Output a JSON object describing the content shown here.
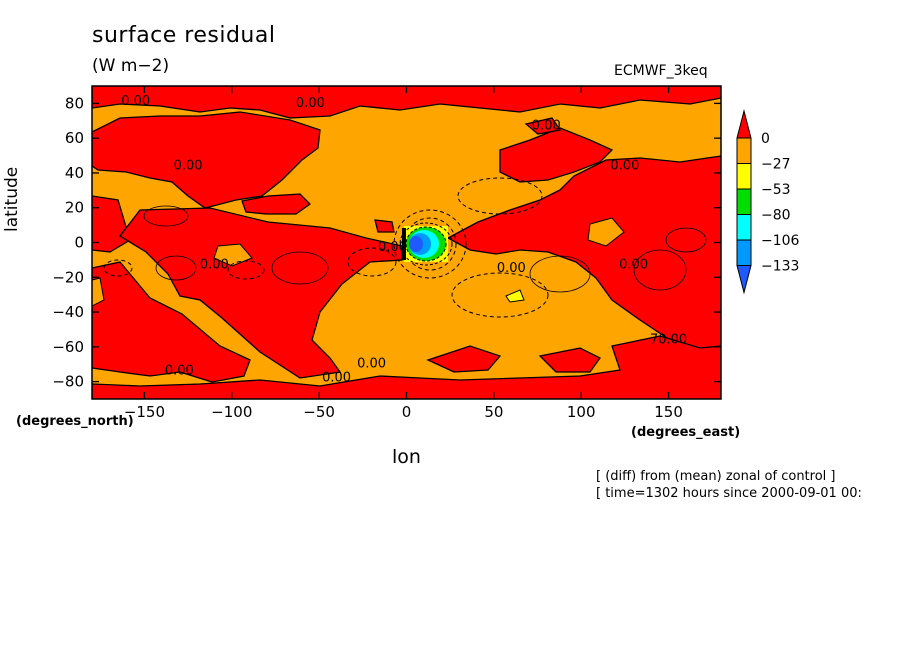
{
  "header": {
    "title": "surface residual",
    "units": "(W m−2)",
    "dataset": "ECMWF_3keq"
  },
  "axes": {
    "x_label": "lon",
    "x_units": "(degrees_east)",
    "y_label": "latitude",
    "y_units": "(degrees_north)"
  },
  "footer": {
    "line1": "[ (diff) from (mean) zonal of control ]",
    "line2": "[ time=1302 hours since 2000-09-01 00:"
  },
  "chart_data": {
    "type": "heatmap",
    "title": "surface residual",
    "units": "W m-2",
    "xlabel": "lon",
    "ylabel": "latitude",
    "xlim": [
      -180,
      180
    ],
    "ylim": [
      -90,
      90
    ],
    "x_ticks": [
      -150,
      -100,
      -50,
      0,
      50,
      100,
      150
    ],
    "y_ticks": [
      -80,
      -60,
      -40,
      -20,
      0,
      20,
      40,
      60,
      80
    ],
    "x_tick_labels": [
      "−150",
      "−100",
      "−50",
      "0",
      "50",
      "100",
      "150"
    ],
    "y_tick_labels": [
      "−80",
      "−60",
      "−40",
      "−20",
      "0",
      "20",
      "40",
      "60",
      "80"
    ],
    "colorbar": {
      "levels": [
        0,
        -27,
        -53,
        -80,
        -106,
        -133
      ],
      "labels": [
        "0",
        "−27",
        "−53",
        "−80",
        "−106",
        "−133"
      ],
      "colors": [
        "#ff0000",
        "#ffa500",
        "#ffff00",
        "#00dd00",
        "#00ffff",
        "#0099ff",
        "#1e5aff"
      ]
    },
    "contour_labels": [
      {
        "text": "0.00",
        "lon": -155,
        "lat": 79
      },
      {
        "text": "0.00",
        "lon": -55,
        "lat": 78
      },
      {
        "text": "0.00",
        "lon": -125,
        "lat": 42
      },
      {
        "text": "0.00",
        "lon": -110,
        "lat": -15
      },
      {
        "text": "0.00",
        "lon": -8,
        "lat": -5
      },
      {
        "text": "0.00",
        "lon": 60,
        "lat": -17
      },
      {
        "text": "0.00",
        "lon": 80,
        "lat": 65
      },
      {
        "text": "0.00",
        "lon": 125,
        "lat": 42
      },
      {
        "text": "0.00",
        "lon": 130,
        "lat": -15
      },
      {
        "text": "0.00",
        "lon": -130,
        "lat": -76
      },
      {
        "text": "0.00",
        "lon": -40,
        "lat": -80
      },
      {
        "text": "0.00",
        "lon": -20,
        "lat": -72
      },
      {
        "text": "70.00",
        "lon": 150,
        "lat": -58
      }
    ],
    "grid": false
  }
}
